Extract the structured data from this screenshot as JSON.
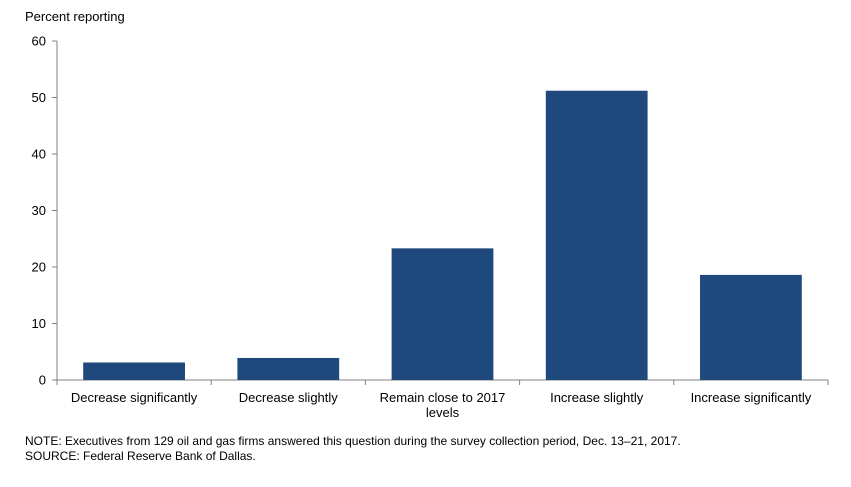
{
  "chart_data": {
    "type": "bar",
    "ylabel": "Percent reporting",
    "xlabel": "",
    "ylim": [
      0,
      60
    ],
    "yticks": [
      0,
      10,
      20,
      30,
      40,
      50,
      60
    ],
    "grid": false,
    "bar_color": "#1F497D",
    "categories": [
      [
        "Decrease significantly"
      ],
      [
        "Decrease slightly"
      ],
      [
        "Remain close to 2017",
        "levels"
      ],
      [
        "Increase slightly"
      ],
      [
        "Increase significantly"
      ]
    ],
    "values": [
      3.1,
      3.9,
      23.3,
      51.2,
      18.6
    ]
  },
  "notes": {
    "note": "NOTE: Executives from 129 oil and gas firms answered this question during the survey collection period, Dec. 13–21, 2017.",
    "source": "SOURCE: Federal Reserve Bank of Dallas."
  }
}
